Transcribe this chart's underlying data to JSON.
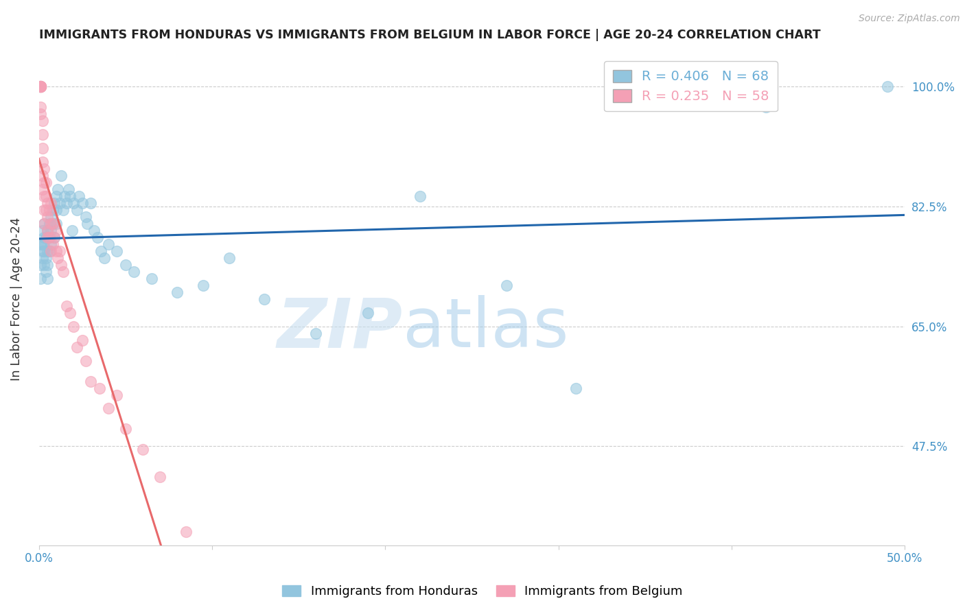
{
  "title": "IMMIGRANTS FROM HONDURAS VS IMMIGRANTS FROM BELGIUM IN LABOR FORCE | AGE 20-24 CORRELATION CHART",
  "source": "Source: ZipAtlas.com",
  "ylabel": "In Labor Force | Age 20-24",
  "x_min": 0.0,
  "x_max": 0.5,
  "y_min": 0.33,
  "y_max": 1.05,
  "x_ticks": [
    0.0,
    0.1,
    0.2,
    0.3,
    0.4,
    0.5
  ],
  "x_tick_labels": [
    "0.0%",
    "",
    "",
    "",
    "",
    "50.0%"
  ],
  "y_ticks": [
    0.475,
    0.65,
    0.825,
    1.0
  ],
  "y_tick_labels": [
    "47.5%",
    "65.0%",
    "82.5%",
    "100.0%"
  ],
  "legend_entries": [
    {
      "label": "R = 0.406   N = 68",
      "color": "#6baed6"
    },
    {
      "label": "R = 0.235   N = 58",
      "color": "#f4a0b5"
    }
  ],
  "watermark_zip": "ZIP",
  "watermark_atlas": "atlas",
  "blue_color": "#92c5de",
  "pink_color": "#f4a0b5",
  "blue_line_color": "#2166ac",
  "pink_line_color": "#e8696b",
  "grid_color": "#cccccc",
  "background_color": "#ffffff",
  "title_color": "#222222",
  "axis_label_color": "#333333",
  "tick_label_color": "#4292c6",
  "right_tick_color": "#4292c6",
  "honduras_x": [
    0.001,
    0.001,
    0.001,
    0.002,
    0.002,
    0.002,
    0.002,
    0.003,
    0.003,
    0.003,
    0.003,
    0.003,
    0.004,
    0.004,
    0.004,
    0.005,
    0.005,
    0.005,
    0.005,
    0.006,
    0.006,
    0.006,
    0.007,
    0.007,
    0.007,
    0.008,
    0.008,
    0.009,
    0.009,
    0.01,
    0.01,
    0.01,
    0.011,
    0.012,
    0.013,
    0.014,
    0.015,
    0.016,
    0.017,
    0.018,
    0.019,
    0.02,
    0.022,
    0.023,
    0.025,
    0.027,
    0.028,
    0.03,
    0.032,
    0.034,
    0.036,
    0.038,
    0.04,
    0.045,
    0.05,
    0.055,
    0.065,
    0.08,
    0.095,
    0.11,
    0.13,
    0.16,
    0.19,
    0.22,
    0.27,
    0.31,
    0.42,
    0.49
  ],
  "honduras_y": [
    0.77,
    0.74,
    0.72,
    0.76,
    0.79,
    0.77,
    0.75,
    0.78,
    0.8,
    0.77,
    0.76,
    0.74,
    0.78,
    0.75,
    0.73,
    0.79,
    0.76,
    0.74,
    0.72,
    0.8,
    0.78,
    0.76,
    0.81,
    0.79,
    0.77,
    0.82,
    0.8,
    0.83,
    0.78,
    0.84,
    0.82,
    0.8,
    0.85,
    0.83,
    0.87,
    0.82,
    0.84,
    0.83,
    0.85,
    0.84,
    0.79,
    0.83,
    0.82,
    0.84,
    0.83,
    0.81,
    0.8,
    0.83,
    0.79,
    0.78,
    0.76,
    0.75,
    0.77,
    0.76,
    0.74,
    0.73,
    0.72,
    0.7,
    0.71,
    0.75,
    0.69,
    0.64,
    0.67,
    0.84,
    0.71,
    0.56,
    0.97,
    1.0
  ],
  "belgium_x": [
    0.001,
    0.001,
    0.001,
    0.001,
    0.001,
    0.001,
    0.001,
    0.001,
    0.001,
    0.001,
    0.001,
    0.001,
    0.002,
    0.002,
    0.002,
    0.002,
    0.002,
    0.002,
    0.003,
    0.003,
    0.003,
    0.003,
    0.003,
    0.004,
    0.004,
    0.004,
    0.005,
    0.005,
    0.005,
    0.005,
    0.006,
    0.006,
    0.007,
    0.007,
    0.007,
    0.008,
    0.008,
    0.009,
    0.01,
    0.01,
    0.011,
    0.012,
    0.013,
    0.014,
    0.016,
    0.018,
    0.02,
    0.022,
    0.025,
    0.027,
    0.03,
    0.035,
    0.04,
    0.045,
    0.05,
    0.06,
    0.07,
    0.085
  ],
  "belgium_y": [
    1.0,
    1.0,
    1.0,
    1.0,
    1.0,
    1.0,
    1.0,
    1.0,
    1.0,
    1.0,
    0.97,
    0.96,
    0.95,
    0.93,
    0.91,
    0.89,
    0.87,
    0.85,
    0.88,
    0.86,
    0.84,
    0.82,
    0.8,
    0.86,
    0.84,
    0.82,
    0.83,
    0.81,
    0.79,
    0.78,
    0.82,
    0.78,
    0.83,
    0.8,
    0.76,
    0.8,
    0.77,
    0.78,
    0.79,
    0.76,
    0.75,
    0.76,
    0.74,
    0.73,
    0.68,
    0.67,
    0.65,
    0.62,
    0.63,
    0.6,
    0.57,
    0.56,
    0.53,
    0.55,
    0.5,
    0.47,
    0.43,
    0.35
  ]
}
